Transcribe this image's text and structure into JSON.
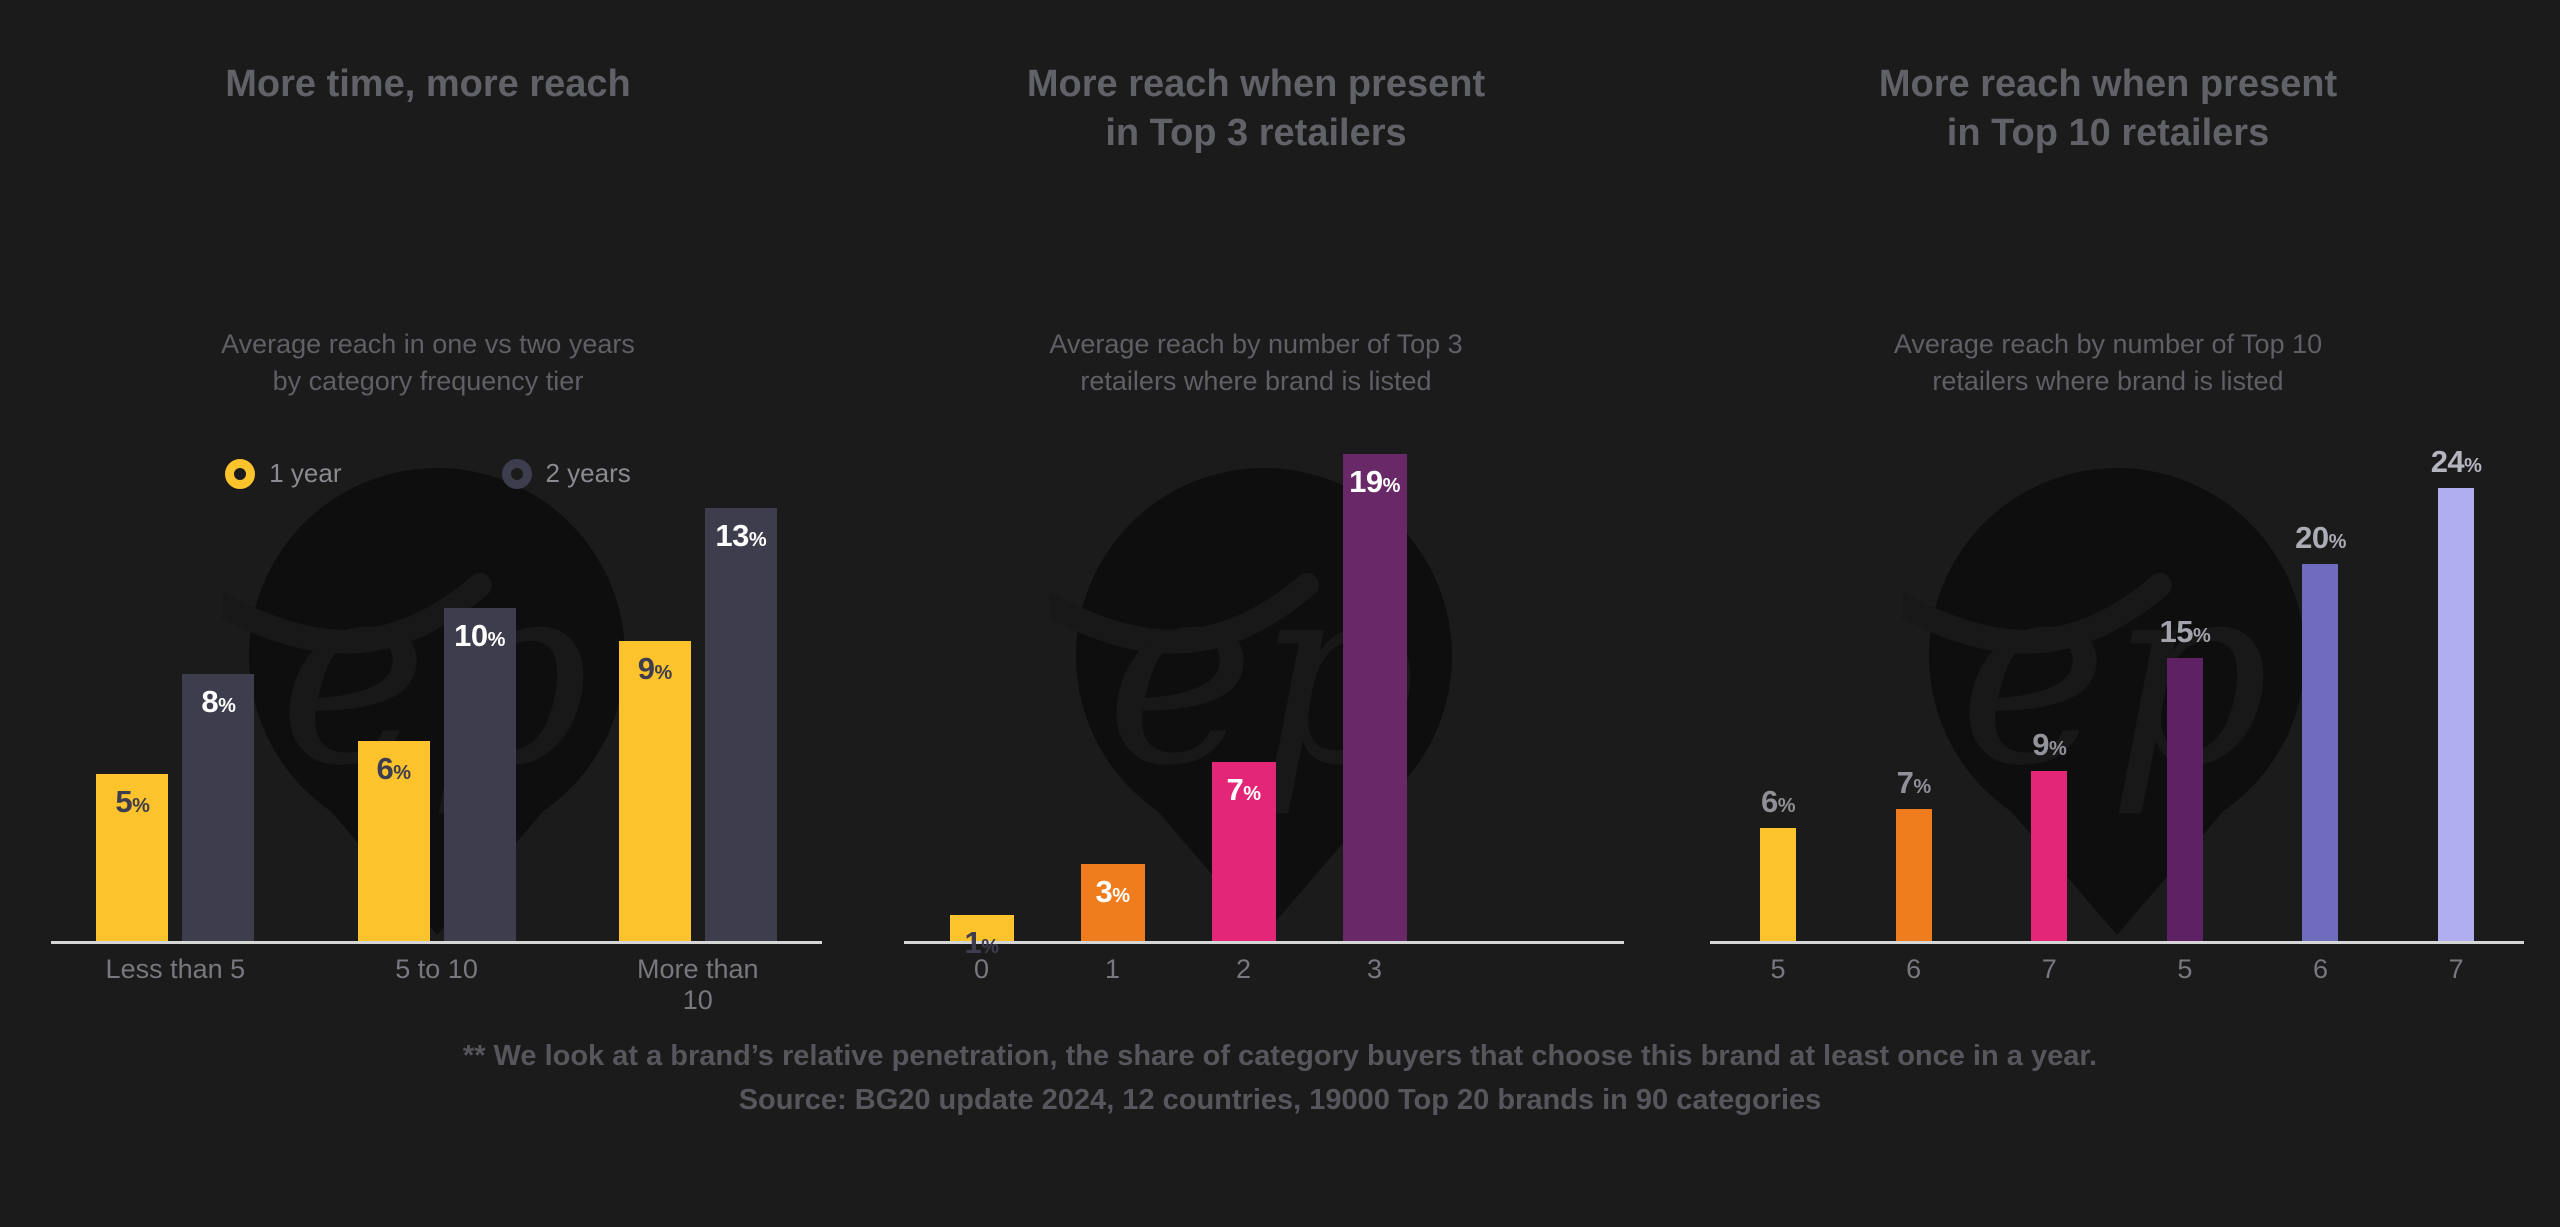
{
  "page": {
    "background": "#1b1b1b",
    "axis_color": "#d6d6d6",
    "tick_color": "#78787e",
    "title_color": "#616168",
    "footer_color": "#56565c"
  },
  "watermark": {
    "text": "ep",
    "pin_color": "#0e0e0e",
    "script_color": "#181818"
  },
  "footer": {
    "line1": "** We look at a brand’s relative penetration, the share of category buyers that choose this brand at least once in a year.",
    "line2": "Source: BG20 update 2024, 12 countries, 19000 Top 20 brands in 90 categories"
  },
  "chart_data": [
    {
      "type": "bar",
      "title": "More time, more reach",
      "subtitle": "Average reach in one vs two years\nby category frequency tier",
      "categories": [
        "Less than 5",
        "5 to 10",
        "More than 10"
      ],
      "series": [
        {
          "name": "1 year",
          "color": "#fcc32d",
          "label_color": "#3e3d4d",
          "values": [
            5,
            6,
            9
          ]
        },
        {
          "name": "2 years",
          "color": "#3e3d4d",
          "label_color": "#ffffff",
          "values": [
            8,
            10,
            13
          ]
        }
      ],
      "unit": "%",
      "ylim": [
        0,
        15
      ],
      "grid": false,
      "legend_position": "top",
      "value_labels": "inside-top"
    },
    {
      "type": "bar",
      "title": "More reach when present\nin Top 3 retailers",
      "subtitle": "Average reach by number of Top 3\nretailers where brand is listed",
      "categories": [
        "0",
        "1",
        "2",
        "3"
      ],
      "values": [
        1,
        3,
        7,
        19
      ],
      "bar_colors": [
        "#fcc32d",
        "#f07d1d",
        "#e42678",
        "#692868"
      ],
      "label_colors": [
        "#3e3d4d",
        "#ffffff",
        "#ffffff",
        "#ffffff"
      ],
      "unit": "%",
      "ylim": [
        0,
        19.5
      ],
      "grid": false,
      "value_labels": "inside-top"
    },
    {
      "type": "bar",
      "title": "More reach when present\nin Top 10 retailers",
      "subtitle": "Average reach by number of Top 10\nretailers where brand is listed",
      "categories": [
        "5",
        "6",
        "7",
        "5",
        "6",
        "7"
      ],
      "values": [
        6,
        7,
        9,
        15,
        20,
        24
      ],
      "bar_colors": [
        "#fcc32d",
        "#f07d1d",
        "#e42678",
        "#5e2264",
        "#6f6cbe",
        "#b0adf0"
      ],
      "label_colors": [
        "#8f8f96",
        "#90909a",
        "#93939c",
        "#a3a3ad",
        "#abacb6",
        "#b5b5c0"
      ],
      "unit": "%",
      "ylim": [
        0,
        26.5
      ],
      "grid": false,
      "value_labels": "above"
    }
  ]
}
